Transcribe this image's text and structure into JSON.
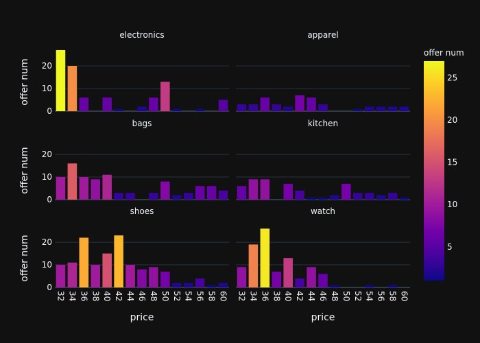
{
  "chart_data": {
    "type": "bar",
    "x": [
      32,
      34,
      36,
      38,
      40,
      42,
      44,
      46,
      48,
      50,
      52,
      54,
      56,
      58,
      60
    ],
    "xlabel": "price",
    "ylabel": "offer num",
    "ylim": [
      0,
      27
    ],
    "yticks": [
      0,
      10,
      20
    ],
    "grid": true,
    "colorbar": {
      "title": "offer num",
      "range": [
        1,
        27
      ],
      "ticks": [
        5,
        10,
        15,
        20,
        25
      ],
      "colorscale": "plasma"
    },
    "panels": [
      {
        "name": "electronics",
        "values": [
          27,
          20,
          6,
          0,
          6,
          1,
          0,
          2,
          6,
          13,
          1,
          0,
          1,
          0,
          5
        ]
      },
      {
        "name": "apparel",
        "values": [
          3,
          3,
          6,
          3,
          2,
          7,
          6,
          3,
          0,
          0,
          1,
          2,
          2,
          2,
          2
        ]
      },
      {
        "name": "bags",
        "values": [
          10,
          16,
          10,
          9,
          11,
          3,
          3,
          0,
          3,
          8,
          2,
          3,
          6,
          6,
          4
        ]
      },
      {
        "name": "kitchen",
        "values": [
          6,
          9,
          9,
          0,
          7,
          4,
          1,
          1,
          2,
          7,
          3,
          3,
          2,
          3,
          1
        ]
      },
      {
        "name": "shoes",
        "values": [
          10,
          11,
          22,
          10,
          15,
          23,
          10,
          8,
          9,
          7,
          2,
          2,
          4,
          1,
          2
        ]
      },
      {
        "name": "watch",
        "values": [
          9,
          19,
          26,
          7,
          13,
          4,
          9,
          6,
          1,
          0,
          0,
          1,
          0,
          1,
          0
        ]
      }
    ]
  }
}
